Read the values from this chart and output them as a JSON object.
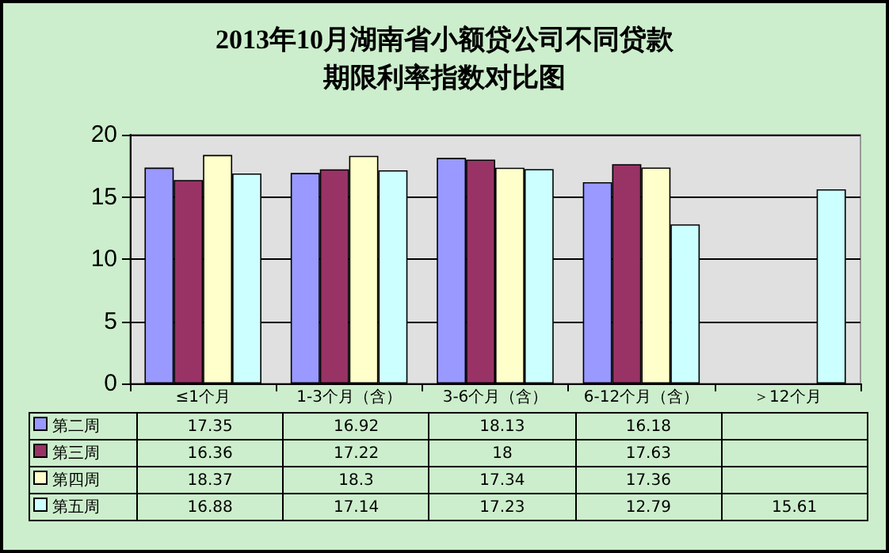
{
  "chart_data": {
    "type": "bar",
    "title": "2013年10月湖南省小额贷公司不同贷款期限利率指数对比图",
    "categories": [
      "≤1个月",
      "1-3个月（含）",
      "3-6个月（含）",
      "6-12个月（含）",
      "＞12个月"
    ],
    "series": [
      {
        "name": "第二周",
        "color": "#9999ff",
        "values": [
          17.35,
          16.92,
          18.13,
          16.18,
          null
        ]
      },
      {
        "name": "第三周",
        "color": "#993366",
        "values": [
          16.36,
          17.22,
          18,
          17.63,
          null
        ]
      },
      {
        "name": "第四周",
        "color": "#ffffcc",
        "values": [
          18.37,
          18.3,
          17.34,
          17.36,
          null
        ]
      },
      {
        "name": "第五周",
        "color": "#ccffff",
        "values": [
          16.88,
          17.14,
          17.23,
          12.79,
          15.61
        ]
      }
    ],
    "ylim": [
      0,
      20
    ],
    "yticks": [
      0,
      5,
      10,
      15,
      20
    ],
    "grid": "y",
    "legend": "bottom",
    "data_labels": true
  }
}
